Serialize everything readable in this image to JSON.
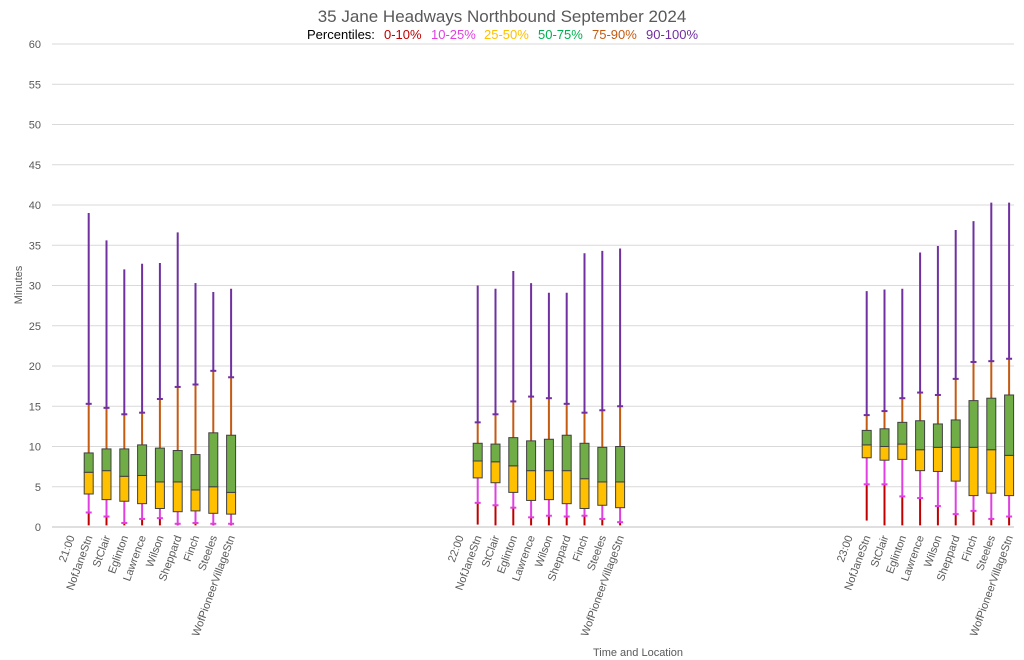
{
  "chart_data": {
    "type": "box",
    "title": "35 Jane Headways Northbound September 2024",
    "xlabel": "Time and Location",
    "ylabel": "Minutes",
    "ylim": [
      0,
      60
    ],
    "yticks": [
      0,
      5,
      10,
      15,
      20,
      25,
      30,
      35,
      40,
      45,
      50,
      55,
      60
    ],
    "grid": true,
    "legend": {
      "label": "Percentiles:",
      "placement": "top-center",
      "items": [
        {
          "name": "0-10%",
          "color": "#c00000"
        },
        {
          "name": "10-25%",
          "color": "#e040e0"
        },
        {
          "name": "25-50%",
          "color": "#ffc000"
        },
        {
          "name": "50-75%",
          "color": "#00b050"
        },
        {
          "name": "75-90%",
          "color": "#c55a11"
        },
        {
          "name": "90-100%",
          "color": "#7030a0"
        }
      ]
    },
    "box_colors": {
      "lower": "#ffc000",
      "upper": "#70ad47",
      "outline": "#404040"
    },
    "categories": [
      "21:00",
      "NofJaneStn",
      "StClair",
      "Eglinton",
      "Lawrence",
      "Wilson",
      "Sheppard",
      "Finch",
      "Steeles",
      "WofPioneerVillageStn",
      "22:00",
      "NofJaneStn",
      "StClair",
      "Eglinton",
      "Lawrence",
      "Wilson",
      "Sheppard",
      "Finch",
      "Steeles",
      "WofPioneerVillageStn",
      "23:00",
      "NofJaneStn",
      "StClair",
      "Eglinton",
      "Lawrence",
      "Wilson",
      "Sheppard",
      "Finch",
      "Steeles",
      "WofPioneerVillageStn"
    ],
    "groups": [
      {
        "time": "21:00",
        "stations": [
          {
            "name": "NofJaneStn",
            "min": 0.2,
            "p10": 1.8,
            "p25": 4.1,
            "p50": 6.8,
            "p75": 9.2,
            "p90": 15.3,
            "max": 39.0
          },
          {
            "name": "StClair",
            "min": 0.2,
            "p10": 1.3,
            "p25": 3.4,
            "p50": 7.0,
            "p75": 9.7,
            "p90": 14.8,
            "max": 35.6
          },
          {
            "name": "Eglinton",
            "min": 0.2,
            "p10": 0.5,
            "p25": 3.2,
            "p50": 6.3,
            "p75": 9.7,
            "p90": 14.0,
            "max": 32.0
          },
          {
            "name": "Lawrence",
            "min": 0.2,
            "p10": 1.0,
            "p25": 2.9,
            "p50": 6.4,
            "p75": 10.2,
            "p90": 14.2,
            "max": 32.7
          },
          {
            "name": "Wilson",
            "min": 0.2,
            "p10": 1.1,
            "p25": 2.3,
            "p50": 5.6,
            "p75": 9.8,
            "p90": 15.9,
            "max": 32.8
          },
          {
            "name": "Sheppard",
            "min": 0.2,
            "p10": 0.4,
            "p25": 1.9,
            "p50": 5.6,
            "p75": 9.5,
            "p90": 17.4,
            "max": 36.6
          },
          {
            "name": "Finch",
            "min": 0.2,
            "p10": 0.5,
            "p25": 2.0,
            "p50": 4.6,
            "p75": 9.0,
            "p90": 17.7,
            "max": 30.3
          },
          {
            "name": "Steeles",
            "min": 0.2,
            "p10": 0.4,
            "p25": 1.7,
            "p50": 5.0,
            "p75": 11.7,
            "p90": 19.4,
            "max": 29.2
          },
          {
            "name": "WofPioneerVillageStn",
            "min": 0.2,
            "p10": 0.4,
            "p25": 1.6,
            "p50": 4.3,
            "p75": 11.4,
            "p90": 18.6,
            "max": 29.6
          }
        ]
      },
      {
        "time": "22:00",
        "stations": [
          {
            "name": "NofJaneStn",
            "min": 0.3,
            "p10": 3.0,
            "p25": 6.1,
            "p50": 8.2,
            "p75": 10.4,
            "p90": 13.0,
            "max": 30.0
          },
          {
            "name": "StClair",
            "min": 0.2,
            "p10": 2.7,
            "p25": 5.5,
            "p50": 8.1,
            "p75": 10.3,
            "p90": 14.0,
            "max": 29.6
          },
          {
            "name": "Eglinton",
            "min": 0.2,
            "p10": 2.4,
            "p25": 4.3,
            "p50": 7.6,
            "p75": 11.1,
            "p90": 15.6,
            "max": 31.8
          },
          {
            "name": "Lawrence",
            "min": 0.2,
            "p10": 1.2,
            "p25": 3.3,
            "p50": 7.0,
            "p75": 10.7,
            "p90": 16.2,
            "max": 30.3
          },
          {
            "name": "Wilson",
            "min": 0.2,
            "p10": 1.4,
            "p25": 3.4,
            "p50": 7.0,
            "p75": 10.9,
            "p90": 16.0,
            "max": 29.1
          },
          {
            "name": "Sheppard",
            "min": 0.2,
            "p10": 1.3,
            "p25": 2.9,
            "p50": 7.0,
            "p75": 11.4,
            "p90": 15.3,
            "max": 29.1
          },
          {
            "name": "Finch",
            "min": 0.2,
            "p10": 1.4,
            "p25": 2.3,
            "p50": 6.0,
            "p75": 10.4,
            "p90": 14.2,
            "max": 34.0
          },
          {
            "name": "Steeles",
            "min": 0.2,
            "p10": 1.0,
            "p25": 2.7,
            "p50": 5.6,
            "p75": 9.9,
            "p90": 14.5,
            "max": 34.3
          },
          {
            "name": "WofPioneerVillageStn",
            "min": 0.2,
            "p10": 0.6,
            "p25": 2.4,
            "p50": 5.6,
            "p75": 10.0,
            "p90": 15.0,
            "max": 34.6
          }
        ]
      },
      {
        "time": "23:00",
        "stations": [
          {
            "name": "NofJaneStn",
            "min": 0.8,
            "p10": 5.3,
            "p25": 8.6,
            "p50": 10.2,
            "p75": 12.0,
            "p90": 13.9,
            "max": 29.3
          },
          {
            "name": "StClair",
            "min": 0.2,
            "p10": 5.3,
            "p25": 8.3,
            "p50": 10.0,
            "p75": 12.2,
            "p90": 14.4,
            "max": 29.5
          },
          {
            "name": "Eglinton",
            "min": 0.2,
            "p10": 3.8,
            "p25": 8.4,
            "p50": 10.3,
            "p75": 13.0,
            "p90": 16.0,
            "max": 29.6
          },
          {
            "name": "Lawrence",
            "min": 0.2,
            "p10": 3.6,
            "p25": 7.0,
            "p50": 9.6,
            "p75": 13.2,
            "p90": 16.7,
            "max": 34.1
          },
          {
            "name": "Wilson",
            "min": 0.2,
            "p10": 2.6,
            "p25": 6.9,
            "p50": 9.9,
            "p75": 12.8,
            "p90": 16.4,
            "max": 34.9
          },
          {
            "name": "Sheppard",
            "min": 0.2,
            "p10": 1.6,
            "p25": 5.7,
            "p50": 9.9,
            "p75": 13.3,
            "p90": 18.4,
            "max": 36.9
          },
          {
            "name": "Finch",
            "min": 0.2,
            "p10": 2.0,
            "p25": 3.9,
            "p50": 9.9,
            "p75": 15.7,
            "p90": 20.5,
            "max": 38.0
          },
          {
            "name": "Steeles",
            "min": 0.2,
            "p10": 1.0,
            "p25": 4.2,
            "p50": 9.6,
            "p75": 16.0,
            "p90": 20.6,
            "max": 40.3
          },
          {
            "name": "WofPioneerVillageStn",
            "min": 0.2,
            "p10": 1.3,
            "p25": 3.9,
            "p50": 8.9,
            "p75": 16.4,
            "p90": 20.9,
            "max": 40.3
          }
        ]
      }
    ]
  }
}
